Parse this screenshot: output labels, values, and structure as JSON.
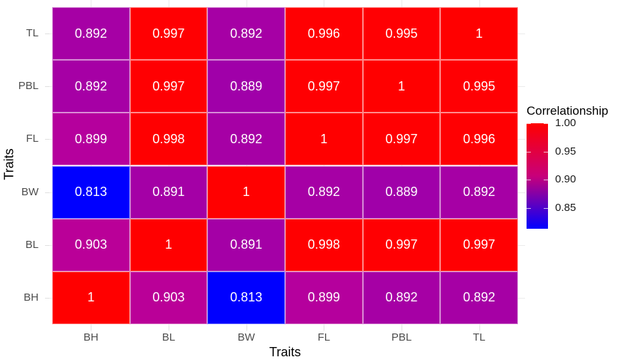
{
  "chart_data": {
    "type": "heatmap",
    "title": "",
    "xlabel": "Traits",
    "ylabel": "Traits",
    "x_categories": [
      "BH",
      "BL",
      "BW",
      "FL",
      "PBL",
      "TL"
    ],
    "y_categories_top_to_bottom": [
      "TL",
      "PBL",
      "FL",
      "BW",
      "BL",
      "BH"
    ],
    "matrix_top_to_bottom": [
      [
        "0.892",
        "0.997",
        "0.892",
        "0.996",
        "0.995",
        "1"
      ],
      [
        "0.892",
        "0.997",
        "0.889",
        "0.997",
        "1",
        "0.995"
      ],
      [
        "0.899",
        "0.998",
        "0.892",
        "1",
        "0.997",
        "0.996"
      ],
      [
        "0.813",
        "0.891",
        "1",
        "0.892",
        "0.889",
        "0.892"
      ],
      [
        "0.903",
        "1",
        "0.891",
        "0.998",
        "0.997",
        "0.997"
      ],
      [
        "1",
        "0.903",
        "0.813",
        "0.899",
        "0.892",
        "0.892"
      ]
    ],
    "legend": {
      "title": "Correlationship",
      "labels": [
        "1.00",
        "0.95",
        "0.90",
        "0.85"
      ],
      "range": [
        0.813,
        1.0
      ],
      "low_color": "#0000ff",
      "high_color": "#ff0000",
      "position": "right"
    },
    "grid": true
  }
}
